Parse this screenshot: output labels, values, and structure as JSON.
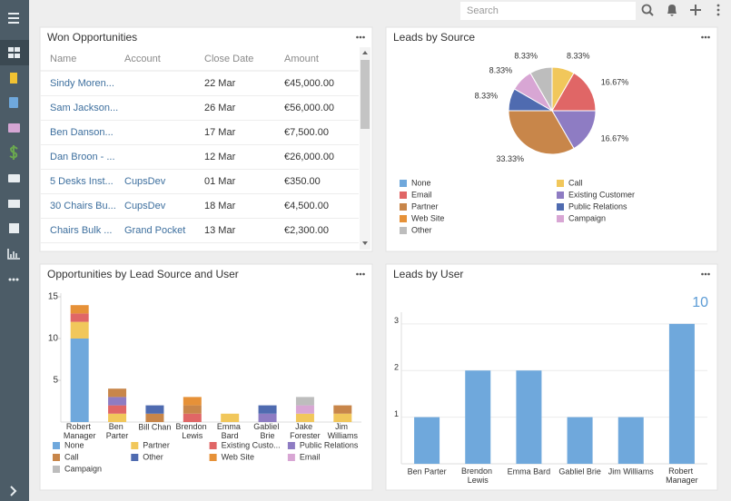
{
  "topbar": {
    "search_placeholder": "Search"
  },
  "won_opportunities": {
    "title": "Won Opportunities",
    "columns": [
      "Name",
      "Account",
      "Close Date",
      "Amount"
    ],
    "rows": [
      [
        "Sindy Moren...",
        null,
        "22 Mar",
        "€45,000.00"
      ],
      [
        "Sam Jackson...",
        null,
        "26 Mar",
        "€56,000.00"
      ],
      [
        "Ben Danson...",
        null,
        "17 Mar",
        "€7,500.00"
      ],
      [
        "Dan Broon - ...",
        null,
        "12 Mar",
        "€26,000.00"
      ],
      [
        "5 Desks Inst...",
        "CupsDev",
        "01 Mar",
        "€350.00"
      ],
      [
        "30 Chairs Bu...",
        "CupsDev",
        "18 Mar",
        "€4,500.00"
      ],
      [
        "Chairs Bulk ...",
        "Grand Pocket",
        "13 Mar",
        "€2,300.00"
      ]
    ]
  },
  "chart_data": [
    {
      "type": "pie",
      "title": "Leads by Source",
      "categories": [
        "None",
        "Call",
        "Email",
        "Existing Customer",
        "Partner",
        "Public Relations",
        "Web Site",
        "Campaign",
        "Other"
      ],
      "values": [
        0,
        8.33,
        16.67,
        16.67,
        33.33,
        8.33,
        0,
        8.33,
        8.33
      ],
      "value_labels": [
        null,
        "8.33%",
        "16.67%",
        "16.67%",
        "33.33%",
        "8.33%",
        null,
        "8.33%",
        "8.33%"
      ],
      "colors": [
        "#6fa8dc",
        "#f1c75b",
        "#e06666",
        "#8e7cc3",
        "#c8864a",
        "#4f6bb0",
        "#e69138",
        "#d8a6d4",
        "#bdbdbd"
      ]
    },
    {
      "type": "stacked_bar",
      "title": "Opportunities by Lead Source and User",
      "categories": [
        "Robert Manager",
        "Ben Parter",
        "Bill Chan",
        "Brendon Lewis",
        "Emma Bard",
        "Gabliel Brie",
        "Jake Forester",
        "Jim Williams"
      ],
      "series": [
        {
          "name": "None",
          "color": "#6fa8dc",
          "values": [
            10,
            0,
            0,
            0,
            0,
            0,
            0,
            0
          ]
        },
        {
          "name": "Partner",
          "color": "#f1c75b",
          "values": [
            2,
            1,
            0,
            0,
            1,
            0,
            1,
            1
          ]
        },
        {
          "name": "Existing Custo...",
          "color": "#e06666",
          "values": [
            1,
            1,
            0,
            1,
            0,
            0,
            0,
            0
          ]
        },
        {
          "name": "Public Relations",
          "color": "#8e7cc3",
          "values": [
            0,
            1,
            0,
            0,
            0,
            1,
            0,
            0
          ]
        },
        {
          "name": "Call",
          "color": "#c8864a",
          "values": [
            0,
            1,
            1,
            1,
            0,
            0,
            0,
            1
          ]
        },
        {
          "name": "Other",
          "color": "#4f6bb0",
          "values": [
            0,
            0,
            1,
            0,
            0,
            1,
            0,
            0
          ]
        },
        {
          "name": "Web Site",
          "color": "#e69138",
          "values": [
            1,
            0,
            0,
            1,
            0,
            0,
            0,
            0
          ]
        },
        {
          "name": "Email",
          "color": "#d8a6d4",
          "values": [
            0,
            0,
            0,
            0,
            0,
            0,
            1,
            0
          ]
        },
        {
          "name": "Campaign",
          "color": "#bdbdbd",
          "values": [
            0,
            0,
            0,
            0,
            0,
            0,
            1,
            0
          ]
        }
      ],
      "ylim": [
        0,
        15
      ],
      "yticks": [
        5,
        10,
        15
      ]
    },
    {
      "type": "bar",
      "title": "Leads by User",
      "total": 10,
      "categories": [
        "Ben Parter",
        "Brendon Lewis",
        "Emma Bard",
        "Gabliel Brie",
        "Jim Williams",
        "Robert Manager"
      ],
      "values": [
        1,
        2,
        2,
        1,
        1,
        3
      ],
      "color": "#6fa8dc",
      "ylim": [
        0,
        3.25
      ],
      "yticks": [
        1,
        2,
        3
      ],
      "grid": true
    }
  ]
}
